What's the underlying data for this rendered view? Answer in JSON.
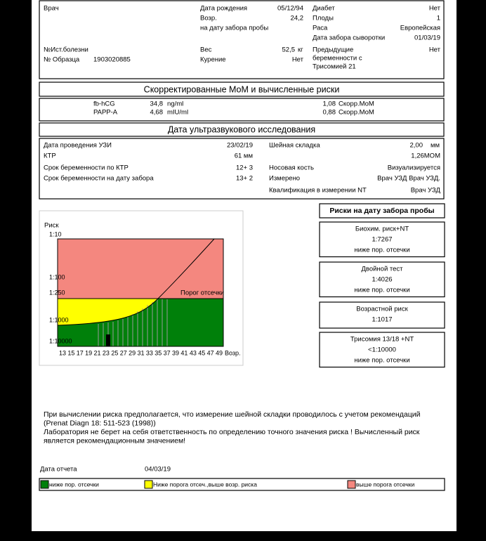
{
  "header": {
    "doctor_label": "Врач",
    "birth_label": "Дата рождения",
    "birth": "05/12/94",
    "age_label": "Возр.",
    "age_label2": "на дату забора пробы",
    "age": "24,2",
    "diabetes_label": "Диабет",
    "diabetes": "Нет",
    "fetus_label": "Плоды",
    "fetus": "1",
    "race_label": "Раса",
    "race": "Европейская",
    "sample_date_label": "Дата забора сыворотки",
    "sample_date": "01/03/19",
    "history_label": "№Ист.болезни",
    "sample_no_label": "№ Образца",
    "sample_no": "1903020885",
    "weight_label": "Вес",
    "weight": "52,5",
    "weight_unit": "кг",
    "smoking_label": "Курение",
    "smoking": "Нет",
    "prev_label": [
      "Предыдущие",
      "беременности с",
      "Трисомией 21"
    ],
    "prev": "Нет"
  },
  "mom": {
    "title": "Скорректированные МоМ и вычисленные риски",
    "rows": [
      {
        "name": "fb-hCG",
        "value": "34,8",
        "unit": "ng/ml",
        "mom": "1,08",
        "mom_label": "Скорр.МоМ"
      },
      {
        "name": "PAPP-A",
        "value": "4,68",
        "unit": "mIU/ml",
        "mom": "0,88",
        "mom_label": "Скорр.МоМ"
      }
    ]
  },
  "us": {
    "title": "Дата ультразвукового исследования",
    "left": [
      {
        "label": "Дата проведения УЗИ",
        "value": "23/02/19"
      },
      {
        "label": "КТР",
        "value": "61 мм"
      },
      {
        "label": "Срок беременности по КТР",
        "value": "12+ 3"
      },
      {
        "label": "Срок беременности на дату забора",
        "value": "13+ 2"
      }
    ],
    "nt_label": "Шейная складка",
    "nt": "2,00",
    "nt_unit": "мм",
    "nt_mom": "1,26МОМ",
    "nasal_label": "Носовая кость",
    "nasal": "Визуализируется",
    "measured_label": "Измерено",
    "measured": "Врач УЗД Врач УЗД.",
    "qual_label": "Квалификация в измерении NT",
    "qual": "Врач УЗД"
  },
  "chart": {
    "y_title": "Риск",
    "y_labels": [
      "1:10",
      "1:100",
      "1:250",
      "1:1000",
      "1:10000"
    ],
    "x_labels": [
      13,
      15,
      17,
      19,
      21,
      23,
      25,
      27,
      29,
      31,
      33,
      35,
      37,
      39,
      41,
      43,
      45,
      47,
      49
    ],
    "x_title": "Возр.",
    "cutoff": "Порог отсечки"
  },
  "risks": {
    "title": "Риски на дату забора пробы",
    "items": [
      {
        "name": "Биохим. риск+NT",
        "value": "1:7267",
        "status": "ниже пор. отсечки"
      },
      {
        "name": "Двойной тест",
        "value": "1:4026",
        "status": "ниже пор. отсечки"
      },
      {
        "name": "Возрастной риск",
        "value": "1:1017"
      },
      {
        "name": "Трисомия 13/18 +NT",
        "value": "<1:10000",
        "status": "ниже пор. отсечки"
      }
    ]
  },
  "notes": [
    "При вычислении риска предполагается, что измерение шейной складки проводилось с учетом рекомендаций",
    "(Prenat Diagn 18: 511-523 (1998))",
    "Лаборатория не берет на себя ответственность по определению точного значения риска ! Вычисленный риск",
    "является рекомендационным значением!"
  ],
  "footer": {
    "report_date_label": "Дата отчета",
    "report_date": "04/03/19",
    "legend": [
      "ниже пор. отсечки",
      "Ниже порога отсеч.,выше возр. риска",
      "выше порога отсечки"
    ]
  }
}
